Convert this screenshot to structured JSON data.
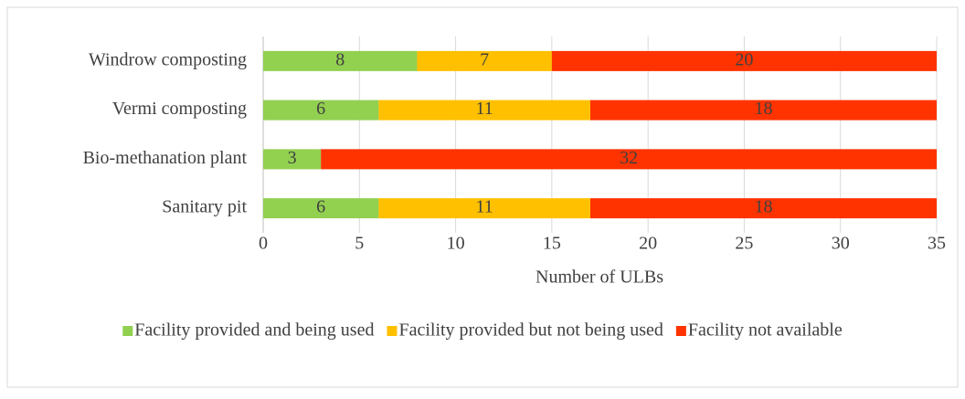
{
  "chart_data": {
    "type": "stacked-barh",
    "categories": [
      "Windrow composting",
      "Vermi composting",
      "Bio-methanation plant",
      "Sanitary pit"
    ],
    "series": [
      {
        "name": "Facility provided and being used",
        "color": "#92d050",
        "values": [
          8,
          6,
          3,
          6
        ]
      },
      {
        "name": "Facility provided but not being used",
        "color": "#ffc000",
        "values": [
          7,
          11,
          0,
          11
        ]
      },
      {
        "name": "Facility not available",
        "color": "#ff3300",
        "values": [
          20,
          18,
          32,
          18
        ]
      }
    ],
    "x_label": "Number of ULBs",
    "xlim": [
      0,
      35
    ],
    "xticks": [
      0,
      5,
      10,
      15,
      20,
      25,
      30,
      35
    ],
    "grid": true,
    "legend": "bottom"
  }
}
